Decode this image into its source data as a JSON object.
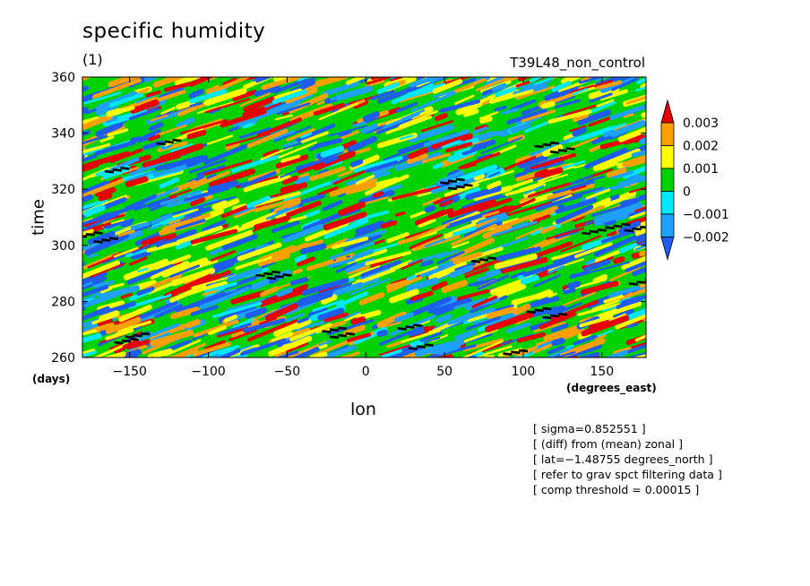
{
  "chart_data": {
    "type": "heatmap",
    "title": "specific humidity",
    "subtitle": "(1)",
    "run_label": "T39L48_non_control",
    "xlabel": "lon",
    "x_unit": "(degrees_east)",
    "ylabel": "time",
    "y_unit": "(days)",
    "xlim": [
      -180,
      178
    ],
    "ylim": [
      260,
      360
    ],
    "x_ticks": [
      -150,
      -100,
      -50,
      0,
      50,
      100,
      150
    ],
    "y_ticks": [
      260,
      280,
      300,
      320,
      340,
      360
    ],
    "colorbar": {
      "labels": [
        "0.003",
        "0.002",
        "0.001",
        "0",
        "−0.001",
        "−0.002"
      ],
      "colors": [
        "#1e5cf0",
        "#1ea0ff",
        "#00e8ff",
        "#00d200",
        "#ffff00",
        "#ffa000",
        "#e60000"
      ]
    },
    "notes": [
      "[ sigma=0.852551 ]",
      "[ (diff) from (mean) zonal ]",
      "[ lat=−1.48755 degrees_north ]",
      "[ refer to grav spct filtering data ]",
      "[ comp threshold = 0.00015 ]"
    ]
  }
}
